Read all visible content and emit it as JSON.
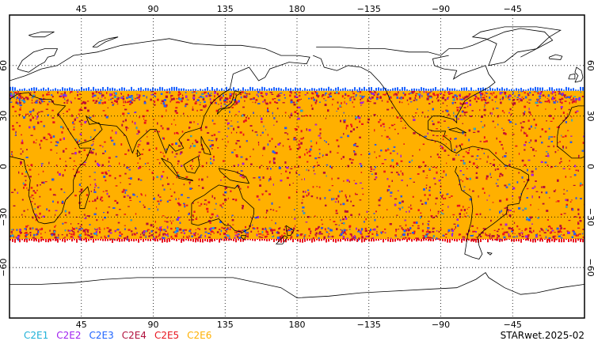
{
  "map": {
    "lon_ticks": [
      "45",
      "90",
      "135",
      "180",
      "−135",
      "−90",
      "−45"
    ],
    "lat_ticks": [
      "60",
      "30",
      "0",
      "−30",
      "−60"
    ],
    "coverage_lat_range": [
      -43,
      45
    ],
    "colors": {
      "frame": "#000000",
      "grid": "#000000",
      "coast": "#000000",
      "sea": "#ffffff"
    }
  },
  "legend": [
    {
      "label": "C2E1",
      "color": "#1fb1d8"
    },
    {
      "label": "C2E2",
      "color": "#a020f0"
    },
    {
      "label": "C2E3",
      "color": "#1e64ff"
    },
    {
      "label": "C2E4",
      "color": "#b0103c"
    },
    {
      "label": "C2E5",
      "color": "#e8141e"
    },
    {
      "label": "C2E6",
      "color": "#ffb000"
    }
  ],
  "product_label": "STARwet.2025-02"
}
